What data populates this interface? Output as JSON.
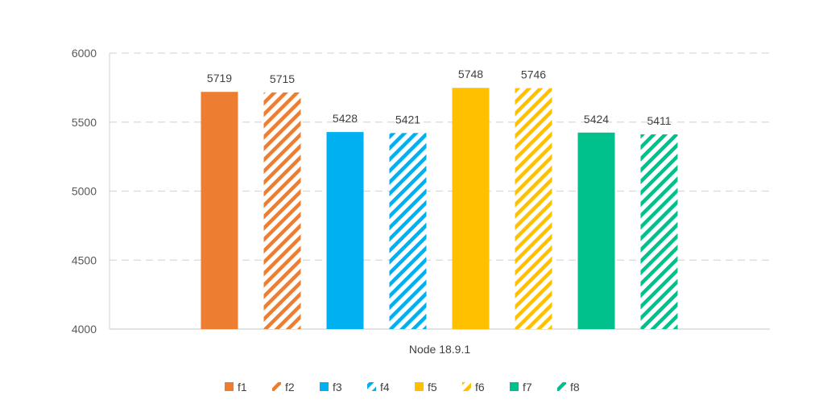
{
  "chart_data": {
    "type": "bar",
    "title": "",
    "xlabel": "",
    "ylabel": "",
    "categories": [
      "Node 18.9.1"
    ],
    "ylim": [
      4000,
      6000
    ],
    "yticks": [
      4000,
      4500,
      5000,
      5500,
      6000
    ],
    "grid": true,
    "legend_position": "bottom",
    "series": [
      {
        "name": "f1",
        "values": [
          5719
        ],
        "color": "#ED7D31",
        "pattern": "solid"
      },
      {
        "name": "f2",
        "values": [
          5715
        ],
        "color": "#ED7D31",
        "pattern": "diagonal-stripes"
      },
      {
        "name": "f3",
        "values": [
          5428
        ],
        "color": "#00B0F0",
        "pattern": "solid"
      },
      {
        "name": "f4",
        "values": [
          5421
        ],
        "color": "#00B0F0",
        "pattern": "diagonal-stripes"
      },
      {
        "name": "f5",
        "values": [
          5748
        ],
        "color": "#FFC000",
        "pattern": "solid"
      },
      {
        "name": "f6",
        "values": [
          5746
        ],
        "color": "#FFC000",
        "pattern": "diagonal-stripes"
      },
      {
        "name": "f7",
        "values": [
          5424
        ],
        "color": "#00C08B",
        "pattern": "solid"
      },
      {
        "name": "f8",
        "values": [
          5411
        ],
        "color": "#00C08B",
        "pattern": "diagonal-stripes"
      }
    ]
  }
}
